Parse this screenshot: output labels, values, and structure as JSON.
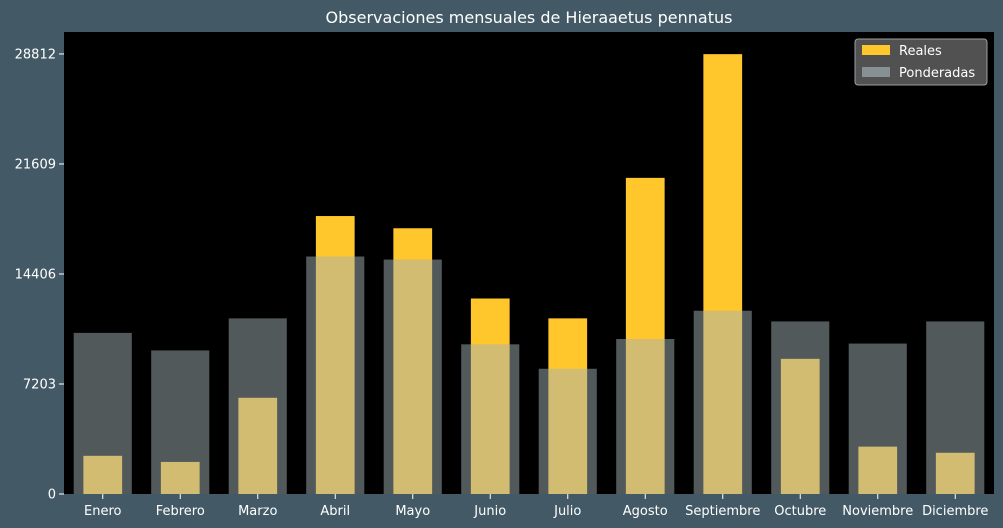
{
  "chart_data": {
    "type": "bar",
    "title": "Observaciones mensuales de Hieraaetus pennatus",
    "xlabel": "",
    "ylabel": "",
    "categories": [
      "Enero",
      "Febrero",
      "Marzo",
      "Abril",
      "Mayo",
      "Junio",
      "Julio",
      "Agosto",
      "Septiembre",
      "Octubre",
      "Noviembre",
      "Diciembre"
    ],
    "yticks": [
      0,
      7203,
      14406,
      21609,
      28812
    ],
    "ylim": [
      0,
      30250
    ],
    "grid": false,
    "legend": {
      "placement": "top-right"
    },
    "series": [
      {
        "name": "Reales",
        "color": "#ffc72c",
        "values": [
          2500,
          2100,
          6300,
          18200,
          17400,
          12800,
          11500,
          20700,
          28800,
          8850,
          3100,
          2700
        ]
      },
      {
        "name": "Ponderadas",
        "color": "#a4b2b5",
        "values": [
          10550,
          9400,
          11500,
          15550,
          15350,
          9800,
          8200,
          10150,
          12000,
          11300,
          9850,
          11300
        ]
      }
    ],
    "colors": {
      "background": "#435a66",
      "plot_background": "#000000",
      "legend_background": "#5a5a5a"
    }
  }
}
